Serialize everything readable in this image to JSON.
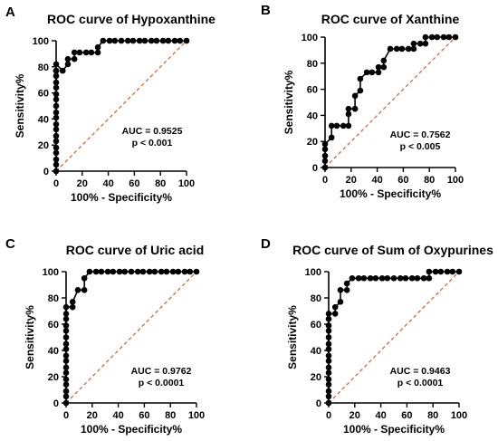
{
  "chart_data": [
    {
      "type": "line",
      "panel_label": "A",
      "title": "ROC curve of Hypoxanthine",
      "xlabel": "100% - Specificity%",
      "ylabel": "Sensitivity%",
      "xlim": [
        0,
        100
      ],
      "ylim": [
        0,
        100
      ],
      "ticks": [
        0,
        20,
        40,
        60,
        80,
        100
      ],
      "annotation": [
        "AUC = 0.9525",
        "p < 0.001"
      ],
      "series": [
        {
          "x": [
            0,
            0,
            0,
            0,
            0,
            0,
            0,
            0,
            0,
            0,
            0,
            0,
            0,
            0,
            0,
            0,
            0,
            0,
            0,
            0,
            5,
            9,
            9,
            14,
            14,
            18,
            23,
            27,
            32,
            32,
            36,
            41,
            45,
            50,
            55,
            59,
            64,
            68,
            73,
            77,
            82,
            86,
            91,
            95,
            100
          ],
          "y": [
            0,
            5,
            9,
            14,
            18,
            23,
            27,
            32,
            36,
            41,
            45,
            50,
            55,
            59,
            64,
            68,
            73,
            77,
            77,
            82,
            77,
            82,
            86,
            86,
            91,
            91,
            91,
            91,
            91,
            95,
            100,
            100,
            100,
            100,
            100,
            100,
            100,
            100,
            100,
            100,
            100,
            100,
            100,
            100,
            100
          ]
        }
      ],
      "reference_line": {
        "x": [
          0,
          100
        ],
        "y": [
          0,
          100
        ],
        "color": "#d06030"
      }
    },
    {
      "type": "line",
      "panel_label": "B",
      "title": "ROC curve of Xanthine",
      "xlabel": "100% - Specificity%",
      "ylabel": "Sensitivity%",
      "xlim": [
        0,
        100
      ],
      "ylim": [
        0,
        100
      ],
      "ticks": [
        0,
        20,
        40,
        60,
        80,
        100
      ],
      "annotation": [
        "AUC = 0.7562",
        "p < 0.005"
      ],
      "series": [
        {
          "x": [
            0,
            0,
            0,
            0,
            0,
            5,
            5,
            9,
            14,
            18,
            18,
            18,
            23,
            23,
            27,
            27,
            32,
            36,
            41,
            41,
            45,
            45,
            50,
            55,
            59,
            64,
            68,
            68,
            73,
            77,
            77,
            82,
            86,
            91,
            95,
            100
          ],
          "y": [
            0,
            5,
            9,
            14,
            18,
            23,
            32,
            32,
            32,
            32,
            41,
            45,
            45,
            55,
            59,
            68,
            73,
            73,
            73,
            77,
            77,
            82,
            91,
            91,
            91,
            91,
            91,
            95,
            95,
            95,
            100,
            100,
            100,
            100,
            100,
            100
          ]
        }
      ],
      "reference_line": {
        "x": [
          0,
          100
        ],
        "y": [
          0,
          100
        ],
        "color": "#d06030"
      }
    },
    {
      "type": "line",
      "panel_label": "C",
      "title": "ROC curve of Uric acid",
      "xlabel": "100% - Specificity%",
      "ylabel": "Sensitivity%",
      "xlim": [
        0,
        100
      ],
      "ylim": [
        0,
        100
      ],
      "ticks": [
        0,
        20,
        40,
        60,
        80,
        100
      ],
      "annotation": [
        "AUC = 0.9762",
        "p < 0.0001"
      ],
      "series": [
        {
          "x": [
            0,
            0,
            0,
            0,
            0,
            0,
            0,
            0,
            0,
            0,
            0,
            0,
            0,
            0,
            0,
            0,
            0,
            5,
            5,
            9,
            14,
            14,
            18,
            23,
            27,
            32,
            36,
            41,
            45,
            50,
            55,
            59,
            64,
            68,
            73,
            77,
            82,
            86,
            91,
            95,
            100
          ],
          "y": [
            0,
            5,
            9,
            14,
            18,
            23,
            27,
            32,
            36,
            41,
            45,
            50,
            55,
            59,
            64,
            68,
            73,
            73,
            77,
            86,
            86,
            95,
            100,
            100,
            100,
            100,
            100,
            100,
            100,
            100,
            100,
            100,
            100,
            100,
            100,
            100,
            100,
            100,
            100,
            100,
            100
          ]
        }
      ],
      "reference_line": {
        "x": [
          0,
          100
        ],
        "y": [
          0,
          100
        ],
        "color": "#d06030"
      }
    },
    {
      "type": "line",
      "panel_label": "D",
      "title": "ROC curve of Sum of Oxypurines",
      "xlabel": "100% - Specificity%",
      "ylabel": "Sensitivity%",
      "xlim": [
        0,
        100
      ],
      "ylim": [
        0,
        100
      ],
      "ticks": [
        0,
        20,
        40,
        60,
        80,
        100
      ],
      "annotation": [
        "AUC = 0.9463",
        "p < 0.0001"
      ],
      "series": [
        {
          "x": [
            0,
            0,
            0,
            0,
            0,
            0,
            0,
            0,
            0,
            0,
            0,
            0,
            0,
            0,
            0,
            0,
            5,
            5,
            9,
            9,
            14,
            14,
            18,
            23,
            27,
            32,
            36,
            41,
            45,
            50,
            55,
            59,
            64,
            68,
            73,
            77,
            77,
            82,
            86,
            91,
            95,
            100
          ],
          "y": [
            0,
            5,
            9,
            14,
            18,
            23,
            27,
            32,
            36,
            41,
            45,
            50,
            55,
            59,
            64,
            68,
            68,
            73,
            77,
            86,
            86,
            91,
            95,
            95,
            95,
            95,
            95,
            95,
            95,
            95,
            95,
            95,
            95,
            95,
            95,
            95,
            100,
            100,
            100,
            100,
            100,
            100
          ]
        }
      ],
      "reference_line": {
        "x": [
          0,
          100
        ],
        "y": [
          0,
          100
        ],
        "color": "#d06030"
      }
    }
  ]
}
